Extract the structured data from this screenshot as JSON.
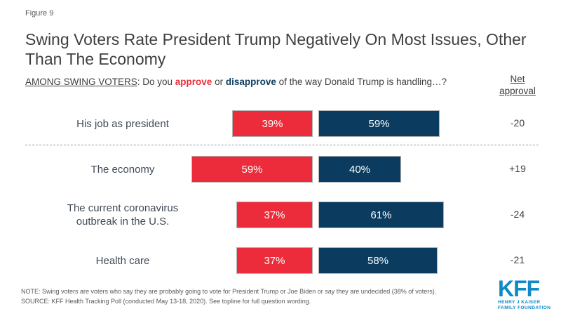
{
  "figure_label": "Figure 9",
  "title": "Swing Voters Rate President Trump Negatively On Most Issues, Other Than The Economy",
  "question": {
    "scope": "AMONG SWING VOTERS",
    "pre": ": Do you ",
    "approve_word": "approve",
    "mid": " or ",
    "disapprove_word": "disapprove",
    "post": " of the way Donald Trump is handling…?"
  },
  "net_header": {
    "line1": "Net",
    "line2": "approval"
  },
  "colors": {
    "approve_red": "#EC2C3A",
    "disapprove_navy": "#0B3C5F",
    "title_gray": "#3F3F3F",
    "footnote_gray": "#595959",
    "kff_blue": "#1089C7"
  },
  "chart_data": {
    "type": "bar",
    "orientation": "horizontal",
    "categories": [
      "His job as president",
      "The economy",
      "The current coronavirus outbreak in the U.S.",
      "Health care"
    ],
    "series": [
      {
        "name": "approve",
        "color": "#EC2C3A",
        "values": [
          39,
          59,
          37,
          37
        ]
      },
      {
        "name": "disapprove",
        "color": "#0B3C5F",
        "values": [
          59,
          40,
          61,
          58
        ]
      }
    ],
    "value_suffix": "%",
    "net_approval": [
      "-20",
      "+19",
      "-24",
      "-21"
    ],
    "xlim": [
      0,
      100
    ],
    "grid": false,
    "legend_position": "inline-in-question",
    "layout_note": "diverging stacked bars; approve extends left, disapprove extends right of a shared axis; dashed separator under first row"
  },
  "footer": {
    "note": "NOTE: Swing voters are voters who say they are probably going to vote for President Trump or Joe Biden or say they are undecided (38% of voters).",
    "source": "SOURCE: KFF Health Tracking Poll (conducted May 13-18, 2020). See topline for full question wording."
  },
  "logo": {
    "text": "KFF",
    "sub_line1": "HENRY J KAISER",
    "sub_line2": "FAMILY FOUNDATION"
  }
}
